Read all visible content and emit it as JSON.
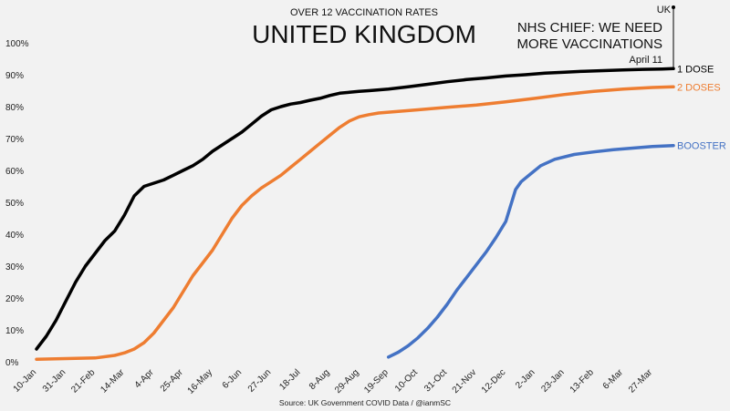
{
  "chart_data": {
    "type": "line",
    "subtitle": "OVER 12 VACCINATION RATES",
    "title": "UNITED KINGDOM",
    "source": "Source: UK Government COVID Data / @ianmSC",
    "annotation": {
      "region": "UK",
      "headline_line1": "NHS CHIEF: WE NEED",
      "headline_line2": "MORE VACCINATIONS",
      "date_label": "April 11",
      "x": "2022-04-11"
    },
    "ylim": [
      0,
      100
    ],
    "y_ticks": [
      "0%",
      "10%",
      "20%",
      "30%",
      "40%",
      "50%",
      "60%",
      "70%",
      "80%",
      "90%",
      "100%"
    ],
    "x_ticks": [
      {
        "date": "2021-01-10",
        "label": "10-Jan"
      },
      {
        "date": "2021-01-31",
        "label": "31-Jan"
      },
      {
        "date": "2021-02-21",
        "label": "21-Feb"
      },
      {
        "date": "2021-03-14",
        "label": "14-Mar"
      },
      {
        "date": "2021-04-04",
        "label": "4-Apr"
      },
      {
        "date": "2021-04-25",
        "label": "25-Apr"
      },
      {
        "date": "2021-05-16",
        "label": "16-May"
      },
      {
        "date": "2021-06-06",
        "label": "6-Jun"
      },
      {
        "date": "2021-06-27",
        "label": "27-Jun"
      },
      {
        "date": "2021-07-18",
        "label": "18-Jul"
      },
      {
        "date": "2021-08-08",
        "label": "8-Aug"
      },
      {
        "date": "2021-08-29",
        "label": "29-Aug"
      },
      {
        "date": "2021-09-19",
        "label": "19-Sep"
      },
      {
        "date": "2021-10-10",
        "label": "10-Oct"
      },
      {
        "date": "2021-10-31",
        "label": "31-Oct"
      },
      {
        "date": "2021-11-21",
        "label": "21-Nov"
      },
      {
        "date": "2021-12-12",
        "label": "12-Dec"
      },
      {
        "date": "2022-01-02",
        "label": "2-Jan"
      },
      {
        "date": "2022-01-23",
        "label": "23-Jan"
      },
      {
        "date": "2022-02-13",
        "label": "13-Feb"
      },
      {
        "date": "2022-03-06",
        "label": "6-Mar"
      },
      {
        "date": "2022-03-27",
        "label": "27-Mar"
      }
    ],
    "series": [
      {
        "name": "1 DOSE",
        "color": "#000000",
        "points": [
          [
            "2021-01-10",
            4
          ],
          [
            "2021-01-17",
            8
          ],
          [
            "2021-01-24",
            13
          ],
          [
            "2021-01-31",
            19
          ],
          [
            "2021-02-07",
            25
          ],
          [
            "2021-02-14",
            30
          ],
          [
            "2021-02-21",
            34
          ],
          [
            "2021-02-28",
            38
          ],
          [
            "2021-03-07",
            41
          ],
          [
            "2021-03-14",
            46
          ],
          [
            "2021-03-21",
            52
          ],
          [
            "2021-03-28",
            55
          ],
          [
            "2021-04-04",
            56
          ],
          [
            "2021-04-11",
            57
          ],
          [
            "2021-04-18",
            58.5
          ],
          [
            "2021-04-25",
            60
          ],
          [
            "2021-05-02",
            61.5
          ],
          [
            "2021-05-09",
            63.5
          ],
          [
            "2021-05-16",
            66
          ],
          [
            "2021-05-23",
            68
          ],
          [
            "2021-05-30",
            70
          ],
          [
            "2021-06-06",
            72
          ],
          [
            "2021-06-13",
            74.5
          ],
          [
            "2021-06-20",
            77
          ],
          [
            "2021-06-27",
            79
          ],
          [
            "2021-07-04",
            80
          ],
          [
            "2021-07-11",
            80.8
          ],
          [
            "2021-07-18",
            81.3
          ],
          [
            "2021-07-25",
            82
          ],
          [
            "2021-08-01",
            82.6
          ],
          [
            "2021-08-08",
            83.5
          ],
          [
            "2021-08-15",
            84.2
          ],
          [
            "2021-08-22",
            84.5
          ],
          [
            "2021-08-29",
            84.8
          ],
          [
            "2021-09-05",
            85
          ],
          [
            "2021-09-19",
            85.5
          ],
          [
            "2021-10-03",
            86.2
          ],
          [
            "2021-10-17",
            87
          ],
          [
            "2021-10-31",
            87.8
          ],
          [
            "2021-11-14",
            88.5
          ],
          [
            "2021-11-28",
            89
          ],
          [
            "2021-12-12",
            89.6
          ],
          [
            "2021-12-26",
            90
          ],
          [
            "2022-01-09",
            90.5
          ],
          [
            "2022-01-23",
            90.8
          ],
          [
            "2022-02-06",
            91.1
          ],
          [
            "2022-02-20",
            91.3
          ],
          [
            "2022-03-06",
            91.5
          ],
          [
            "2022-03-20",
            91.7
          ],
          [
            "2022-04-03",
            91.8
          ],
          [
            "2022-04-11",
            91.9
          ]
        ]
      },
      {
        "name": "2 DOSES",
        "color": "#ee7d31",
        "points": [
          [
            "2021-01-10",
            0.8
          ],
          [
            "2021-01-31",
            1
          ],
          [
            "2021-02-21",
            1.2
          ],
          [
            "2021-03-07",
            2
          ],
          [
            "2021-03-14",
            2.8
          ],
          [
            "2021-03-21",
            4
          ],
          [
            "2021-03-28",
            6
          ],
          [
            "2021-04-04",
            9
          ],
          [
            "2021-04-11",
            13
          ],
          [
            "2021-04-18",
            17
          ],
          [
            "2021-04-25",
            22
          ],
          [
            "2021-05-02",
            27
          ],
          [
            "2021-05-09",
            31
          ],
          [
            "2021-05-16",
            35
          ],
          [
            "2021-05-23",
            40
          ],
          [
            "2021-05-30",
            45
          ],
          [
            "2021-06-06",
            49
          ],
          [
            "2021-06-13",
            52
          ],
          [
            "2021-06-20",
            54.5
          ],
          [
            "2021-06-27",
            56.5
          ],
          [
            "2021-07-04",
            58.5
          ],
          [
            "2021-07-11",
            61
          ],
          [
            "2021-07-18",
            63.5
          ],
          [
            "2021-07-25",
            66
          ],
          [
            "2021-08-01",
            68.5
          ],
          [
            "2021-08-08",
            71
          ],
          [
            "2021-08-15",
            73.5
          ],
          [
            "2021-08-22",
            75.5
          ],
          [
            "2021-08-29",
            76.8
          ],
          [
            "2021-09-05",
            77.5
          ],
          [
            "2021-09-12",
            78
          ],
          [
            "2021-09-26",
            78.5
          ],
          [
            "2021-10-10",
            79
          ],
          [
            "2021-10-31",
            79.8
          ],
          [
            "2021-11-21",
            80.5
          ],
          [
            "2021-12-12",
            81.5
          ],
          [
            "2022-01-02",
            82.6
          ],
          [
            "2022-01-23",
            83.8
          ],
          [
            "2022-02-13",
            84.8
          ],
          [
            "2022-03-06",
            85.5
          ],
          [
            "2022-03-27",
            86
          ],
          [
            "2022-04-11",
            86.2
          ]
        ]
      },
      {
        "name": "BOOSTER",
        "color": "#4472c4",
        "points": [
          [
            "2021-09-19",
            1.5
          ],
          [
            "2021-09-26",
            3
          ],
          [
            "2021-10-03",
            5
          ],
          [
            "2021-10-10",
            7.5
          ],
          [
            "2021-10-17",
            10.5
          ],
          [
            "2021-10-24",
            14
          ],
          [
            "2021-10-31",
            18
          ],
          [
            "2021-11-07",
            22.5
          ],
          [
            "2021-11-14",
            26.5
          ],
          [
            "2021-11-21",
            30.5
          ],
          [
            "2021-11-28",
            34.5
          ],
          [
            "2021-12-05",
            39
          ],
          [
            "2021-12-12",
            44
          ],
          [
            "2021-12-19",
            54
          ],
          [
            "2021-12-23",
            56.5
          ],
          [
            "2021-12-30",
            59
          ],
          [
            "2022-01-06",
            61.5
          ],
          [
            "2022-01-16",
            63.5
          ],
          [
            "2022-01-30",
            65
          ],
          [
            "2022-02-13",
            65.8
          ],
          [
            "2022-02-27",
            66.5
          ],
          [
            "2022-03-13",
            67
          ],
          [
            "2022-03-27",
            67.5
          ],
          [
            "2022-04-11",
            67.8
          ]
        ]
      }
    ],
    "grid": false,
    "legend": "inline labels at line ends"
  }
}
